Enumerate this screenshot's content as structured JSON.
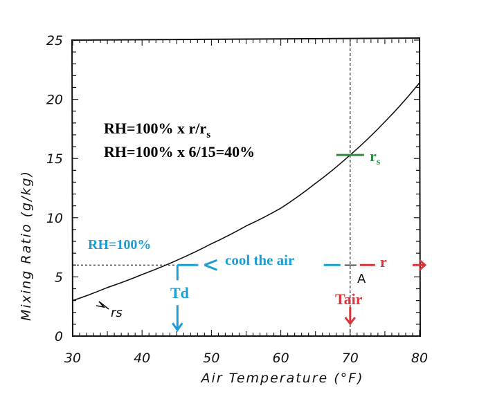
{
  "chart_data": {
    "type": "line",
    "title": "",
    "xlabel": "Air Temperature (°F)",
    "ylabel": "Mixing Ratio (g/kg)",
    "xlim": [
      30,
      80
    ],
    "ylim": [
      0,
      25
    ],
    "x_ticks": [
      "30",
      "40",
      "50",
      "60",
      "70",
      "80"
    ],
    "y_ticks": [
      "0",
      "5",
      "10",
      "15",
      "20",
      "25"
    ],
    "series": [
      {
        "name": "rs",
        "x": [
          30,
          35,
          40,
          45,
          50,
          55,
          60,
          65,
          70,
          75,
          80
        ],
        "y": [
          3,
          4.1,
          5.2,
          6.4,
          7.8,
          9.3,
          10.8,
          12.9,
          15.3,
          18.1,
          21.4
        ]
      }
    ],
    "legend": "none",
    "grid": false,
    "annotations": {
      "formula_line1": "RH=100% x r/r",
      "formula_line1_sub": "s",
      "formula_line2": "RH=100% x 6/15=40%",
      "rs_label": "r",
      "rs_label_sub": "s",
      "rh_label": "RH=100%",
      "cool_label": "cool the air",
      "r_label": "r",
      "td_label": "Td",
      "tair_label": "Tair",
      "a_label": "A",
      "curve_label": "rs",
      "colors": {
        "curve": "#111111",
        "text": "#000000",
        "blue": "#1a9ed4",
        "red": "#d8373a",
        "green": "#2e8b3e"
      }
    }
  }
}
